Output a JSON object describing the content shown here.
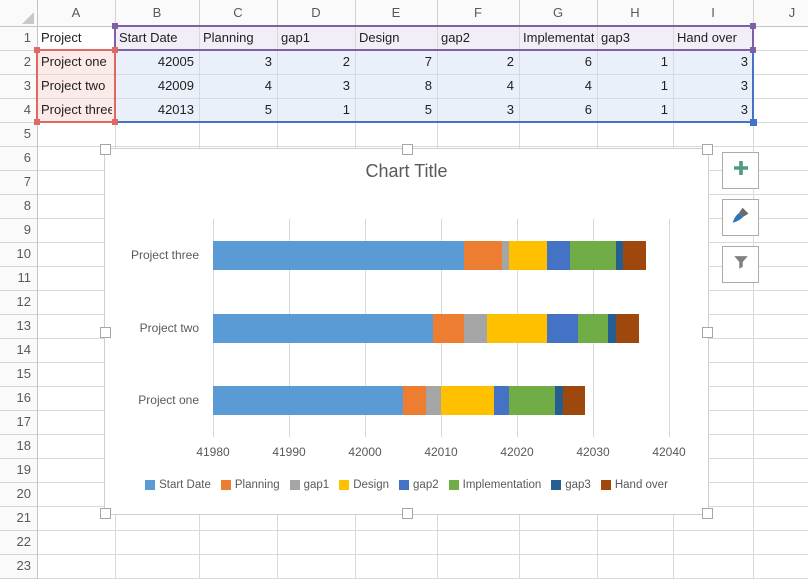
{
  "app": {
    "name": "Excel worksheet with stacked bar chart"
  },
  "sheet": {
    "column_headers": [
      "A",
      "B",
      "C",
      "D",
      "E",
      "F",
      "G",
      "H",
      "I",
      "J"
    ],
    "row_headers": [
      "1",
      "2",
      "3",
      "4",
      "5",
      "6",
      "7",
      "8",
      "9",
      "10",
      "11",
      "12",
      "13",
      "14",
      "15",
      "16",
      "17",
      "18",
      "19",
      "20",
      "21",
      "22",
      "23"
    ],
    "table": {
      "headers": [
        "Project",
        "Start Date",
        "Planning",
        "gap1",
        "Design",
        "gap2",
        "Implementation",
        "gap3",
        "Hand over"
      ],
      "rows": [
        {
          "name": "Project one",
          "values": [
            42005,
            3,
            2,
            7,
            2,
            6,
            1,
            3
          ]
        },
        {
          "name": "Project two",
          "values": [
            42009,
            4,
            3,
            8,
            4,
            4,
            1,
            3
          ]
        },
        {
          "name": "Project three",
          "values": [
            42013,
            5,
            1,
            5,
            3,
            6,
            1,
            3
          ]
        }
      ]
    },
    "highlights": {
      "category_range": {
        "cells": "A2:A4",
        "border": "#DD6B63",
        "fill": "#FCEAE9"
      },
      "series_name_range": {
        "cells": "B1:I1",
        "border": "#7C61A5",
        "fill": "#F1EEF7"
      },
      "value_range": {
        "cells": "B2:I4",
        "border": "#4472C4",
        "fill": "#EAF0F9"
      }
    }
  },
  "chart_ui": {
    "buttons": [
      {
        "name": "chart-elements-button",
        "icon": "plus-icon",
        "color": "#4F9C80"
      },
      {
        "name": "chart-styles-button",
        "icon": "paintbrush-icon",
        "color": "#2E75B6"
      },
      {
        "name": "chart-filters-button",
        "icon": "funnel-icon",
        "color": "#808080"
      }
    ]
  },
  "chart_data": {
    "type": "bar",
    "orientation": "horizontal",
    "stacked": true,
    "title": "Chart Title",
    "categories": [
      "Project one",
      "Project two",
      "Project three"
    ],
    "display_order_top_to_bottom": [
      "Project three",
      "Project two",
      "Project one"
    ],
    "series": [
      {
        "name": "Start Date",
        "color": "#5B9BD5",
        "values": [
          42005,
          42009,
          42013
        ]
      },
      {
        "name": "Planning",
        "color": "#ED7D31",
        "values": [
          3,
          4,
          5
        ]
      },
      {
        "name": "gap1",
        "color": "#A5A5A5",
        "values": [
          2,
          3,
          1
        ]
      },
      {
        "name": "Design",
        "color": "#FFC000",
        "values": [
          7,
          8,
          5
        ]
      },
      {
        "name": "gap2",
        "color": "#4472C4",
        "values": [
          2,
          4,
          3
        ]
      },
      {
        "name": "Implementation",
        "color": "#70AD47",
        "values": [
          6,
          4,
          6
        ]
      },
      {
        "name": "gap3",
        "color": "#255E91",
        "values": [
          1,
          1,
          1
        ]
      },
      {
        "name": "Hand over",
        "color": "#9E480E",
        "values": [
          3,
          3,
          3
        ]
      }
    ],
    "x_axis": {
      "min": 41980,
      "max": 42040,
      "tick_step": 10,
      "tick_labels": [
        "41980",
        "41990",
        "42000",
        "42010",
        "42020",
        "42030",
        "42040"
      ]
    },
    "legend": {
      "position": "bottom",
      "entries": [
        "Start Date",
        "Planning",
        "gap1",
        "Design",
        "gap2",
        "Implementation",
        "gap3",
        "Hand over"
      ]
    },
    "grid": true
  }
}
